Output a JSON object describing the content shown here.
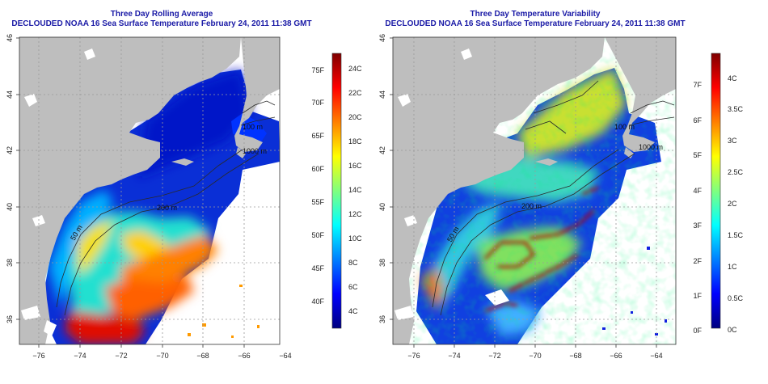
{
  "left_panel": {
    "title": "Three Day Rolling Average",
    "subtitle": "DECLOUDED NOAA 16 Sea Surface Temperature February 24, 2011 11:38 GMT",
    "lat_ticks": [
      "46",
      "44",
      "42",
      "40",
      "38",
      "36"
    ],
    "lon_ticks": [
      "−76",
      "−74",
      "−72",
      "−70",
      "−68",
      "−66",
      "−64"
    ],
    "contours": [
      "100 m",
      "200 m",
      "1000 m",
      "50 m"
    ],
    "colorbar_f": [
      "75F",
      "70F",
      "65F",
      "60F",
      "55F",
      "50F",
      "45F",
      "40F"
    ],
    "colorbar_c": [
      "24C",
      "22C",
      "20C",
      "18C",
      "16C",
      "14C",
      "12C",
      "10C",
      "8C",
      "6C",
      "4C"
    ]
  },
  "right_panel": {
    "title": "Three Day Temperature Variability",
    "subtitle": "DECLOUDED NOAA 16 Sea Surface Temperature February 24, 2011 11:38 GMT",
    "lat_ticks": [
      "46",
      "44",
      "42",
      "40",
      "38",
      "36"
    ],
    "lon_ticks": [
      "−76",
      "−74",
      "−72",
      "−70",
      "−68",
      "−66",
      "−64"
    ],
    "contours": [
      "100 m",
      "200 m",
      "1000 m",
      "50 m"
    ],
    "colorbar_f": [
      "7F",
      "6F",
      "5F",
      "4F",
      "3F",
      "2F",
      "1F",
      "0F"
    ],
    "colorbar_c": [
      "4C",
      "3.5C",
      "3C",
      "2.5C",
      "2C",
      "1.5C",
      "1C",
      "0.5C",
      "0C"
    ]
  },
  "colors": {
    "land": "#bebebe",
    "nodata": "#ffffff",
    "title_blue": "#1a1aa6",
    "jet": [
      "#00007f",
      "#0000ff",
      "#007fff",
      "#00ffff",
      "#7fff7f",
      "#ffff00",
      "#ff7f00",
      "#ff0000",
      "#7f0000"
    ]
  }
}
